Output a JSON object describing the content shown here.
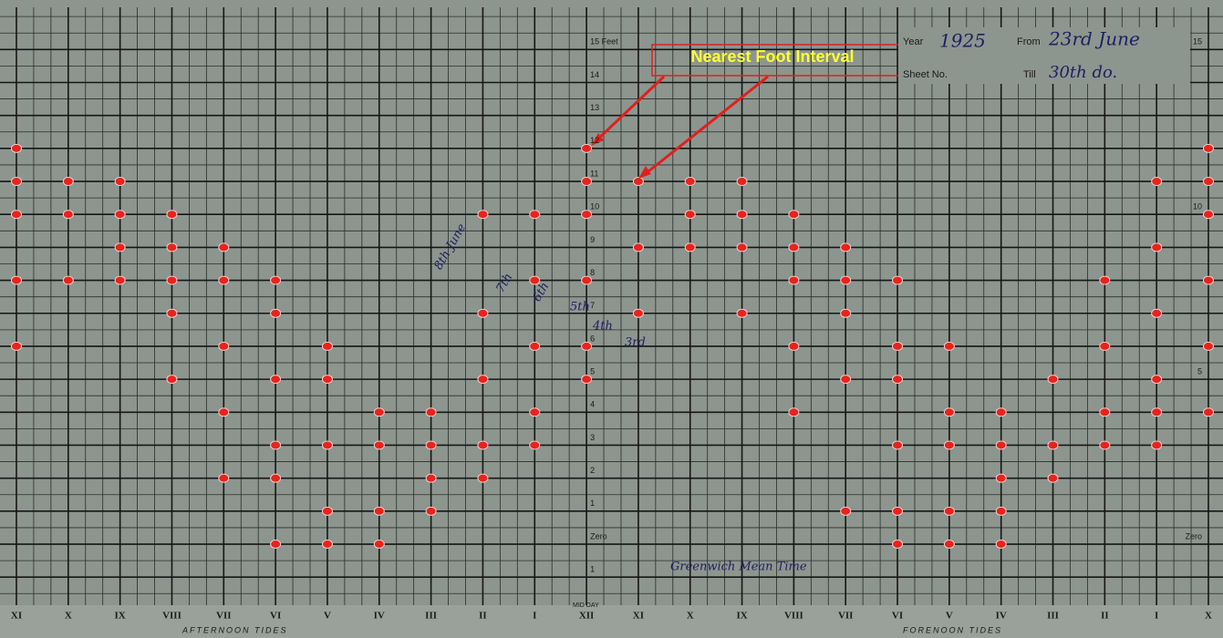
{
  "chart_data": {
    "type": "scatter",
    "annotation": "Nearest Foot Interval",
    "categories": [
      "XI",
      "X",
      "IX",
      "VIII",
      "VII",
      "VI",
      "V",
      "IV",
      "III",
      "II",
      "I",
      "XII",
      "XI",
      "X",
      "IX",
      "VIII",
      "VII",
      "VI",
      "V",
      "IV",
      "III",
      "II",
      "I",
      "X"
    ],
    "values": [
      [
        12,
        11,
        10,
        8,
        6
      ],
      [
        11,
        10,
        8
      ],
      [
        11,
        10,
        9,
        8
      ],
      [
        10,
        9,
        8,
        7,
        5
      ],
      [
        9,
        8,
        6,
        4,
        2
      ],
      [
        8,
        7,
        5,
        3,
        2,
        0
      ],
      [
        6,
        5,
        3,
        1,
        0
      ],
      [
        4,
        3,
        1,
        0
      ],
      [
        4,
        3,
        2,
        1
      ],
      [
        10,
        7,
        5,
        3,
        2
      ],
      [
        10,
        8,
        6,
        4,
        3
      ],
      [
        12,
        11,
        10,
        8,
        6,
        5
      ],
      [
        11,
        9,
        7
      ],
      [
        11,
        10,
        9
      ],
      [
        11,
        10,
        9,
        7
      ],
      [
        10,
        9,
        8,
        6,
        4
      ],
      [
        9,
        8,
        7,
        5,
        1
      ],
      [
        8,
        6,
        5,
        3,
        1,
        0
      ],
      [
        6,
        4,
        3,
        1,
        0
      ],
      [
        4,
        3,
        2,
        1,
        0
      ],
      [
        5,
        3,
        2
      ],
      [
        8,
        6,
        4,
        3
      ],
      [
        11,
        9,
        7,
        5,
        4,
        3
      ],
      [
        12,
        11,
        10,
        8,
        6,
        4
      ]
    ],
    "color": "#e8231d",
    "ylim": [
      -2.57,
      16.28
    ],
    "yticks": [
      {
        "value": 15,
        "label": "15 Feet"
      },
      14,
      13,
      12,
      11,
      10,
      9,
      8,
      7,
      6,
      5,
      4,
      3,
      2,
      1,
      {
        "value": 0,
        "label": "Zero"
      },
      {
        "value": -1,
        "label": "1"
      }
    ],
    "y2ticks": [
      15,
      10,
      5,
      {
        "value": 0,
        "label": "Zero"
      }
    ],
    "grid": true
  },
  "sheet": {
    "year_label": "Year",
    "year": "1925",
    "from_label": "From",
    "from": "23rd June",
    "sheet_label": "Sheet No.",
    "till_label": "Till",
    "till": "30th do.",
    "midday": "MID DAY",
    "afternoon": "AFTERNOON TIDES",
    "forenoon": "FORENOON TIDES",
    "curve_labels": [
      "8th June",
      "7th",
      "6th",
      "5th",
      "4th",
      "3rd"
    ],
    "signature": "Greenwich Mean Time"
  }
}
